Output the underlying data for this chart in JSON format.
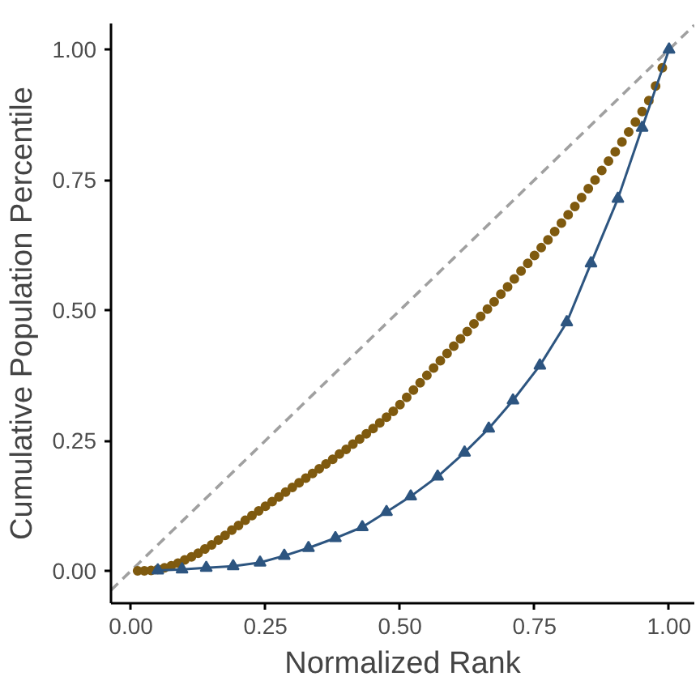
{
  "chart_data": {
    "type": "line",
    "xlabel": "Normalized Rank",
    "ylabel": "Cumulative Population Percentile",
    "xlim": [
      -0.037,
      1.047
    ],
    "ylim": [
      -0.062,
      1.05
    ],
    "xticks": [
      {
        "value": 0,
        "label": "0.00"
      },
      {
        "value": 0.25,
        "label": "0.25"
      },
      {
        "value": 0.5,
        "label": "0.50"
      },
      {
        "value": 0.75,
        "label": "0.75"
      },
      {
        "value": 1,
        "label": "1.00"
      }
    ],
    "yticks": [
      {
        "value": 0,
        "label": "0.00"
      },
      {
        "value": 0.25,
        "label": "0.25"
      },
      {
        "value": 0.5,
        "label": "0.50"
      },
      {
        "value": 0.75,
        "label": "0.75"
      },
      {
        "value": 1,
        "label": "1.00"
      }
    ],
    "grid": false,
    "series": [
      {
        "color": "#a0a0a0",
        "line_style": "dashed",
        "marker": "none",
        "x": [
          -0.037,
          1.047
        ],
        "values": [
          -0.037,
          1.047
        ]
      },
      {
        "type": "scatter",
        "color": "#7f5a0f",
        "marker": "circle",
        "x": [
          0.0125,
          0.025,
          0.0375,
          0.05,
          0.0625,
          0.075,
          0.0875,
          0.1,
          0.1125,
          0.125,
          0.1375,
          0.15,
          0.1625,
          0.175,
          0.1875,
          0.2,
          0.2125,
          0.225,
          0.2375,
          0.25,
          0.2625,
          0.275,
          0.2875,
          0.3,
          0.3125,
          0.325,
          0.3375,
          0.35,
          0.3625,
          0.375,
          0.3875,
          0.4,
          0.4125,
          0.425,
          0.4375,
          0.45,
          0.4625,
          0.475,
          0.4875,
          0.5,
          0.5125,
          0.525,
          0.5375,
          0.55,
          0.5625,
          0.575,
          0.5875,
          0.6,
          0.6125,
          0.625,
          0.6375,
          0.65,
          0.6625,
          0.675,
          0.6875,
          0.7,
          0.7125,
          0.725,
          0.7375,
          0.75,
          0.7625,
          0.775,
          0.7875,
          0.8,
          0.8125,
          0.825,
          0.8375,
          0.85,
          0.8625,
          0.875,
          0.8875,
          0.9,
          0.9125,
          0.925,
          0.9375,
          0.95,
          0.9625,
          0.975,
          0.9875
        ],
        "values": [
          0.0,
          0.0,
          0.001,
          0.003,
          0.006,
          0.01,
          0.015,
          0.021,
          0.027,
          0.034,
          0.042,
          0.05,
          0.059,
          0.068,
          0.078,
          0.087,
          0.097,
          0.106,
          0.115,
          0.124,
          0.133,
          0.142,
          0.151,
          0.16,
          0.169,
          0.178,
          0.187,
          0.196,
          0.205,
          0.214,
          0.224,
          0.233,
          0.243,
          0.253,
          0.263,
          0.273,
          0.284,
          0.295,
          0.306,
          0.319,
          0.333,
          0.347,
          0.361,
          0.375,
          0.389,
          0.403,
          0.417,
          0.431,
          0.445,
          0.459,
          0.474,
          0.488,
          0.502,
          0.516,
          0.531,
          0.545,
          0.56,
          0.575,
          0.59,
          0.605,
          0.62,
          0.635,
          0.651,
          0.667,
          0.683,
          0.699,
          0.716,
          0.733,
          0.75,
          0.768,
          0.786,
          0.804,
          0.823,
          0.842,
          0.861,
          0.881,
          0.902,
          0.93,
          0.965
        ]
      },
      {
        "color": "#2d5580",
        "marker": "triangle",
        "line_style": "solid",
        "x": [
          0.05,
          0.095,
          0.14,
          0.19,
          0.24,
          0.285,
          0.33,
          0.38,
          0.43,
          0.475,
          0.52,
          0.57,
          0.62,
          0.665,
          0.71,
          0.76,
          0.81,
          0.855,
          0.905,
          0.95,
          1.0
        ],
        "values": [
          0.001,
          0.003,
          0.006,
          0.009,
          0.016,
          0.029,
          0.044,
          0.063,
          0.084,
          0.113,
          0.143,
          0.181,
          0.227,
          0.273,
          0.327,
          0.394,
          0.477,
          0.59,
          0.714,
          0.85,
          1.0
        ]
      }
    ]
  }
}
